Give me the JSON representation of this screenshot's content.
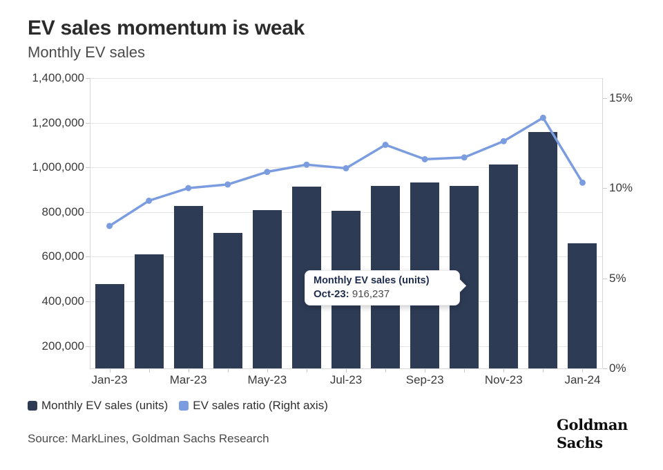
{
  "header": {
    "title": "EV sales momentum is weak",
    "subtitle": "Monthly EV sales"
  },
  "chart_data": {
    "type": "combo",
    "categories": [
      "Jan-23",
      "Feb-23",
      "Mar-23",
      "Apr-23",
      "May-23",
      "Jun-23",
      "Jul-23",
      "Aug-23",
      "Sep-23",
      "Oct-23",
      "Nov-23",
      "Dec-23",
      "Jan-24"
    ],
    "x_shown_label_indices": [
      0,
      2,
      4,
      6,
      8,
      10,
      12
    ],
    "series": [
      {
        "name": "Monthly EV sales (units)",
        "kind": "bar",
        "axis": "left",
        "color": "#2d3b55",
        "values": [
          477000,
          610000,
          826000,
          708000,
          810000,
          914000,
          807000,
          917000,
          932000,
          916237,
          1012000,
          1158000,
          659000
        ]
      },
      {
        "name": "EV sales ratio (Right axis)",
        "kind": "line",
        "axis": "right",
        "color": "#7b9ddf",
        "values": [
          7.9,
          9.3,
          10.0,
          10.2,
          10.9,
          11.3,
          11.1,
          12.4,
          11.6,
          11.7,
          12.6,
          13.9,
          10.3
        ]
      }
    ],
    "left_axis": {
      "min": 100000,
      "max": 1400000,
      "tick_values": [
        200000,
        400000,
        600000,
        800000,
        1000000,
        1200000,
        1400000
      ],
      "tick_labels": [
        "200,000",
        "400,000",
        "600,000",
        "800,000",
        "1,000,000",
        "1,200,000",
        "1,400,000"
      ]
    },
    "right_axis": {
      "min": 0,
      "max": 16.1,
      "tick_values": [
        0,
        5,
        10,
        15
      ],
      "tick_labels": [
        "0%",
        "5%",
        "10%",
        "15%"
      ]
    },
    "grid": "horizontal-only",
    "legend_position": "bottom-left",
    "title": "EV sales momentum is weak",
    "subtitle": "Monthly EV sales"
  },
  "tooltip": {
    "title": "Monthly EV sales (units)",
    "label": "Oct-23:",
    "value": "916,237"
  },
  "legend": {
    "items": [
      {
        "label": "Monthly EV sales (units)",
        "color": "#2d3b55"
      },
      {
        "label": "EV sales ratio (Right axis)",
        "color": "#7b9ddf"
      }
    ]
  },
  "footer": {
    "source": "Source: MarkLines, Goldman Sachs Research",
    "logo_line1": "Goldman",
    "logo_line2": "Sachs"
  },
  "colors": {
    "bar": "#2d3b55",
    "line": "#7b9ddf",
    "grid": "#e4e4e4",
    "axis_border": "#d8d8d8",
    "tick": "#c9c9c9"
  }
}
